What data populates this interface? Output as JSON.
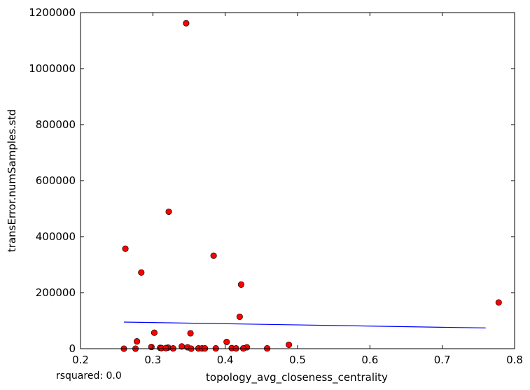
{
  "chart_data": {
    "type": "scatter",
    "title": "",
    "xlabel": "topology_avg_closeness_centrality",
    "ylabel": "transError.numSamples.std",
    "xlim": [
      0.2,
      0.8
    ],
    "ylim": [
      0,
      1200000
    ],
    "x_ticks": [
      0.2,
      0.3,
      0.4,
      0.5,
      0.6,
      0.7,
      0.8
    ],
    "x_tick_labels": [
      "0.2",
      "0.3",
      "0.4",
      "0.5",
      "0.6",
      "0.7",
      "0.8"
    ],
    "y_ticks": [
      0,
      200000,
      400000,
      600000,
      800000,
      1000000,
      1200000
    ],
    "y_tick_labels": [
      "0",
      "200000",
      "400000",
      "600000",
      "800000",
      "1000000",
      "1200000"
    ],
    "grid": false,
    "annotation": "rsquared: 0.0",
    "point_color": "#ff0000",
    "line_color": "#0000ff",
    "points": [
      {
        "x": 0.346,
        "y": 1162000
      },
      {
        "x": 0.322,
        "y": 489000
      },
      {
        "x": 0.262,
        "y": 357000
      },
      {
        "x": 0.384,
        "y": 332000
      },
      {
        "x": 0.284,
        "y": 272000
      },
      {
        "x": 0.422,
        "y": 229000
      },
      {
        "x": 0.778,
        "y": 165000
      },
      {
        "x": 0.42,
        "y": 114000
      },
      {
        "x": 0.302,
        "y": 57000
      },
      {
        "x": 0.352,
        "y": 55000
      },
      {
        "x": 0.278,
        "y": 26000
      },
      {
        "x": 0.402,
        "y": 24000
      },
      {
        "x": 0.488,
        "y": 14000
      },
      {
        "x": 0.34,
        "y": 8000
      },
      {
        "x": 0.298,
        "y": 6000
      },
      {
        "x": 0.348,
        "y": 5000
      },
      {
        "x": 0.43,
        "y": 5000
      },
      {
        "x": 0.321,
        "y": 4000
      },
      {
        "x": 0.31,
        "y": 3000
      },
      {
        "x": 0.312,
        "y": 2000
      },
      {
        "x": 0.318,
        "y": 2000
      },
      {
        "x": 0.328,
        "y": 1000
      },
      {
        "x": 0.363,
        "y": 1000
      },
      {
        "x": 0.368,
        "y": 1000
      },
      {
        "x": 0.372,
        "y": 1000
      },
      {
        "x": 0.387,
        "y": 1000
      },
      {
        "x": 0.409,
        "y": 2000
      },
      {
        "x": 0.415,
        "y": 1000
      },
      {
        "x": 0.425,
        "y": 1000
      },
      {
        "x": 0.458,
        "y": 1000
      },
      {
        "x": 0.26,
        "y": 0
      },
      {
        "x": 0.276,
        "y": 0
      },
      {
        "x": 0.353,
        "y": 0
      }
    ],
    "fit_line": {
      "x": [
        0.26,
        0.76
      ],
      "y": [
        95000,
        74000
      ]
    }
  }
}
